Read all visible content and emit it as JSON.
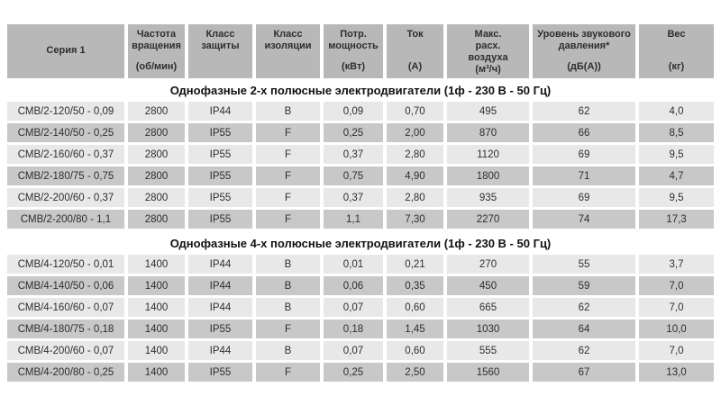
{
  "colors": {
    "page_bg": "#ffffff",
    "header_bg": "#b8b8b8",
    "row_light_bg": "#e8e8e8",
    "row_dark_bg": "#c8c8c8",
    "text": "#2e2e2e",
    "section_title_text": "#111111"
  },
  "table": {
    "headers": [
      {
        "label": "Серия 1",
        "unit": ""
      },
      {
        "label": "Частота\nвращения",
        "unit": "(об/мин)"
      },
      {
        "label": "Класс\nзащиты",
        "unit": ""
      },
      {
        "label": "Класс\nизоляции",
        "unit": ""
      },
      {
        "label": "Потр.\nмощность",
        "unit": "(кВт)"
      },
      {
        "label": "Ток",
        "unit": "(А)"
      },
      {
        "label": "Макс.\nрасх.\nвоздуха",
        "unit": "(м³/ч)"
      },
      {
        "label": "Уровень звукового\nдавления*",
        "unit": "(дБ(А))"
      },
      {
        "label": "Вес",
        "unit": "(кг)"
      }
    ],
    "sections": [
      {
        "title": "Однофазные 2-х полюсные электродвигатели (1ф - 230 В - 50 Гц)",
        "rows": [
          [
            "СМВ/2-120/50 - 0,09",
            "2800",
            "IP44",
            "B",
            "0,09",
            "0,70",
            "495",
            "62",
            "4,0"
          ],
          [
            "СМВ/2-140/50 - 0,25",
            "2800",
            "IP55",
            "F",
            "0,25",
            "2,00",
            "870",
            "66",
            "8,5"
          ],
          [
            "СМВ/2-160/60 - 0,37",
            "2800",
            "IP55",
            "F",
            "0,37",
            "2,80",
            "1120",
            "69",
            "9,5"
          ],
          [
            "СМВ/2-180/75 - 0,75",
            "2800",
            "IP55",
            "F",
            "0,75",
            "4,90",
            "1800",
            "71",
            "4,7"
          ],
          [
            "СМВ/2-200/60 - 0,37",
            "2800",
            "IP55",
            "F",
            "0,37",
            "2,80",
            "935",
            "69",
            "9,5"
          ],
          [
            "СМВ/2-200/80 - 1,1",
            "2800",
            "IP55",
            "F",
            "1,1",
            "7,30",
            "2270",
            "74",
            "17,3"
          ]
        ]
      },
      {
        "title": "Однофазные 4-х полюсные электродвигатели (1ф - 230 В - 50 Гц)",
        "rows": [
          [
            "СМВ/4-120/50 - 0,01",
            "1400",
            "IP44",
            "B",
            "0,01",
            "0,21",
            "270",
            "55",
            "3,7"
          ],
          [
            "СМВ/4-140/50 - 0,06",
            "1400",
            "IP44",
            "B",
            "0,06",
            "0,35",
            "450",
            "59",
            "7,0"
          ],
          [
            "СМВ/4-160/60 - 0,07",
            "1400",
            "IP44",
            "B",
            "0,07",
            "0,60",
            "665",
            "62",
            "7,0"
          ],
          [
            "СМВ/4-180/75 - 0,18",
            "1400",
            "IP55",
            "F",
            "0,18",
            "1,45",
            "1030",
            "64",
            "10,0"
          ],
          [
            "СМВ/4-200/60 - 0,07",
            "1400",
            "IP44",
            "B",
            "0,07",
            "0,60",
            "555",
            "62",
            "7,0"
          ],
          [
            "СМВ/4-200/80 - 0,25",
            "1400",
            "IP55",
            "F",
            "0,25",
            "2,50",
            "1560",
            "67",
            "13,0"
          ]
        ]
      }
    ]
  }
}
